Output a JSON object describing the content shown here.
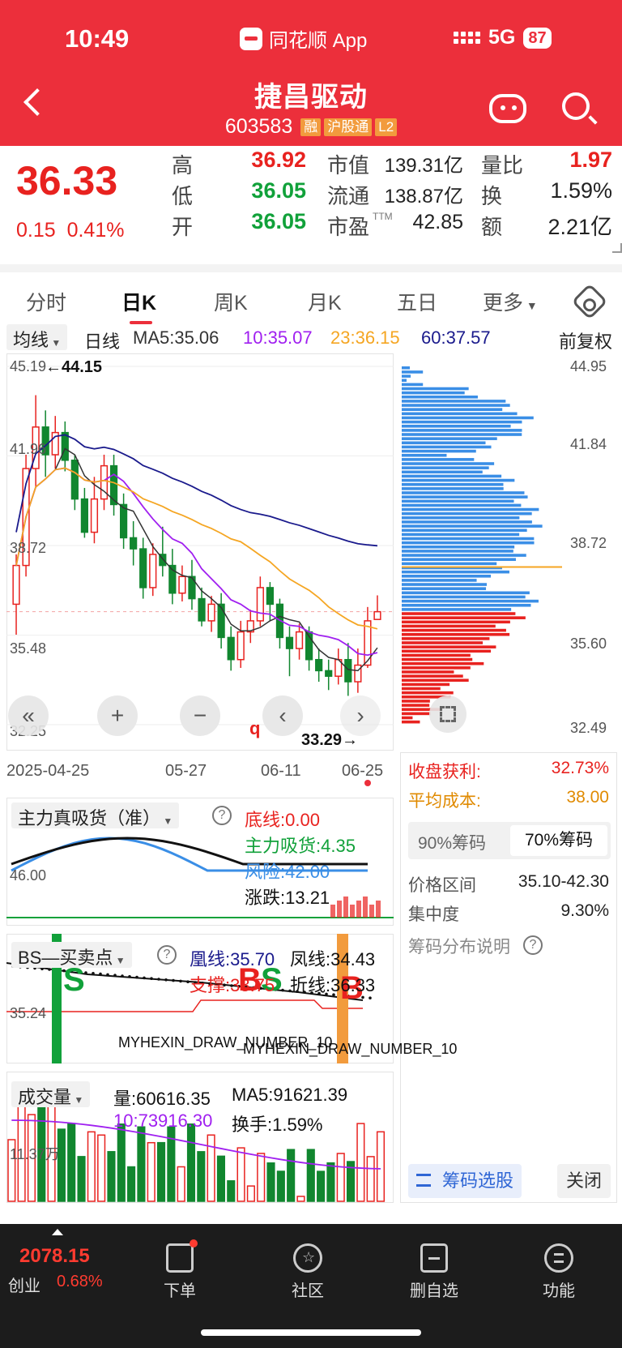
{
  "status": {
    "time": "10:49",
    "app_name": "同花顺 App",
    "network": "5G",
    "battery": "87"
  },
  "stock": {
    "name": "捷昌驱动",
    "code": "603583",
    "tags": [
      "融",
      "沪股通",
      "L2"
    ]
  },
  "quote": {
    "price": "36.33",
    "change": "0.15",
    "change_pct": "0.41%",
    "high_label": "高",
    "high": "36.92",
    "low_label": "低",
    "low": "36.05",
    "open_label": "开",
    "open": "36.05",
    "mktcap_label": "市值",
    "mktcap": "139.31亿",
    "float_label": "流通",
    "float": "138.87亿",
    "pe_label": "市盈",
    "pe_sup": "TTM",
    "pe": "42.85",
    "volratio_label": "量比",
    "volratio": "1.97",
    "turnover_label": "换",
    "turnover": "1.59%",
    "amount_label": "额",
    "amount": "2.21亿"
  },
  "tabs": [
    "分时",
    "日K",
    "周K",
    "月K",
    "五日",
    "更多"
  ],
  "active_tab": "日K",
  "ma_row": {
    "dropdown": "均线",
    "period": "日线",
    "ma5": "MA5:35.06",
    "ma10": "10:35.07",
    "ma23": "23:36.15",
    "ma60": "60:37.57",
    "adjust": "前复权"
  },
  "kline": {
    "y_labels": [
      "45.19",
      "41.96",
      "38.72",
      "35.48",
      "32.25"
    ],
    "high_mark": "←44.15",
    "low_mark": "33.29→",
    "x_labels": [
      "2025-04-25",
      "05-27",
      "06-11",
      "06-25"
    ],
    "candles": [
      {
        "o": 36.6,
        "c": 38.0,
        "h": 38.4,
        "l": 35.5
      },
      {
        "o": 38.0,
        "c": 41.5,
        "h": 42.0,
        "l": 37.6
      },
      {
        "o": 41.5,
        "c": 43.0,
        "h": 44.15,
        "l": 40.8
      },
      {
        "o": 43.0,
        "c": 42.0,
        "h": 43.6,
        "l": 41.2
      },
      {
        "o": 42.0,
        "c": 42.8,
        "h": 43.4,
        "l": 41.5
      },
      {
        "o": 42.8,
        "c": 41.8,
        "h": 43.2,
        "l": 41.4
      },
      {
        "o": 41.8,
        "c": 40.4,
        "h": 42.0,
        "l": 40.0
      },
      {
        "o": 40.4,
        "c": 39.2,
        "h": 40.8,
        "l": 39.0
      },
      {
        "o": 39.2,
        "c": 40.4,
        "h": 41.2,
        "l": 38.8
      },
      {
        "o": 40.4,
        "c": 41.6,
        "h": 42.0,
        "l": 40.0
      },
      {
        "o": 41.6,
        "c": 40.2,
        "h": 42.0,
        "l": 39.8
      },
      {
        "o": 40.2,
        "c": 39.0,
        "h": 40.6,
        "l": 38.6
      },
      {
        "o": 39.0,
        "c": 38.6,
        "h": 39.6,
        "l": 38.0
      },
      {
        "o": 38.6,
        "c": 37.2,
        "h": 39.0,
        "l": 36.8
      },
      {
        "o": 37.2,
        "c": 38.4,
        "h": 38.8,
        "l": 36.9
      },
      {
        "o": 38.4,
        "c": 38.0,
        "h": 39.4,
        "l": 37.6
      },
      {
        "o": 38.0,
        "c": 37.0,
        "h": 38.6,
        "l": 36.6
      },
      {
        "o": 37.0,
        "c": 37.6,
        "h": 38.0,
        "l": 36.7
      },
      {
        "o": 37.6,
        "c": 36.8,
        "h": 38.2,
        "l": 36.4
      },
      {
        "o": 36.8,
        "c": 36.0,
        "h": 37.2,
        "l": 35.8
      },
      {
        "o": 36.0,
        "c": 36.6,
        "h": 36.9,
        "l": 35.6
      },
      {
        "o": 36.6,
        "c": 35.4,
        "h": 37.0,
        "l": 35.0
      },
      {
        "o": 35.4,
        "c": 34.6,
        "h": 35.8,
        "l": 34.2
      },
      {
        "o": 34.6,
        "c": 35.6,
        "h": 36.0,
        "l": 34.3
      },
      {
        "o": 35.6,
        "c": 36.0,
        "h": 36.4,
        "l": 35.2
      },
      {
        "o": 36.0,
        "c": 37.2,
        "h": 37.6,
        "l": 35.8
      },
      {
        "o": 37.2,
        "c": 36.6,
        "h": 37.4,
        "l": 36.0
      },
      {
        "o": 36.6,
        "c": 35.4,
        "h": 36.8,
        "l": 35.0
      },
      {
        "o": 35.4,
        "c": 35.0,
        "h": 35.8,
        "l": 34.0
      },
      {
        "o": 35.0,
        "c": 35.6,
        "h": 35.9,
        "l": 34.6
      },
      {
        "o": 35.6,
        "c": 34.6,
        "h": 35.8,
        "l": 34.2
      },
      {
        "o": 34.6,
        "c": 34.2,
        "h": 35.0,
        "l": 33.8
      },
      {
        "o": 34.2,
        "c": 34.0,
        "h": 34.6,
        "l": 33.5
      },
      {
        "o": 34.0,
        "c": 34.6,
        "h": 35.0,
        "l": 33.7
      },
      {
        "o": 34.6,
        "c": 33.8,
        "h": 35.2,
        "l": 33.29
      },
      {
        "o": 33.8,
        "c": 34.4,
        "h": 35.0,
        "l": 33.4
      },
      {
        "o": 34.4,
        "c": 36.0,
        "h": 36.5,
        "l": 34.3
      },
      {
        "o": 36.05,
        "c": 36.33,
        "h": 36.92,
        "l": 36.05
      }
    ],
    "ma_colors": {
      "ma5": "#333333",
      "ma10": "#a020f0",
      "ma23": "#f5a623",
      "ma60": "#1a1a8c"
    },
    "nav_buttons": [
      "«",
      "+",
      "−",
      "‹",
      "›"
    ],
    "q_marker": "q"
  },
  "chips": {
    "y_labels": [
      "44.95",
      "41.84",
      "38.72",
      "35.60",
      "32.49"
    ],
    "profit_label": "收盘获利:",
    "profit": "32.73%",
    "avgcost_label": "平均成本:",
    "avgcost": "38.00",
    "tab90": "90%筹码",
    "tab70": "70%筹码",
    "range_label": "价格区间",
    "range": "35.10-42.30",
    "conc_label": "集中度",
    "conc": "9.30%",
    "explain": "筹码分布说明",
    "select_btn": "筹码选股",
    "close_btn": "关闭"
  },
  "ind1": {
    "title": "主力真吸货（准）",
    "base": "底线:0.00",
    "absorb": "主力吸货:4.35",
    "risk": "风险:42.00",
    "change": "涨跌:13.21",
    "axis": "46.00"
  },
  "ind2": {
    "title": "BS—买卖点",
    "phoenix": "凰线:35.70",
    "feng": "凤线:34.43",
    "support": "支撑:33.75",
    "fold": "折线:36.33",
    "axis": "35.24",
    "draw_label_1": "MYHEXIN_DRAW_NUMBER_10",
    "draw_label_2": "MYHEXIN_DRAW_NUMBER_10"
  },
  "ind3": {
    "title": "成交量",
    "vol": "量:60616.35",
    "ma5": "MA5:91621.39",
    "ma10": "10:73916.30",
    "turnover": "换手:1.59%",
    "axis": "11.37万"
  },
  "bottom_nav": {
    "index_value": "2078.15",
    "index_name": "创业",
    "index_pct": "0.68%",
    "items": [
      "下单",
      "社区",
      "删自选",
      "功能"
    ]
  }
}
